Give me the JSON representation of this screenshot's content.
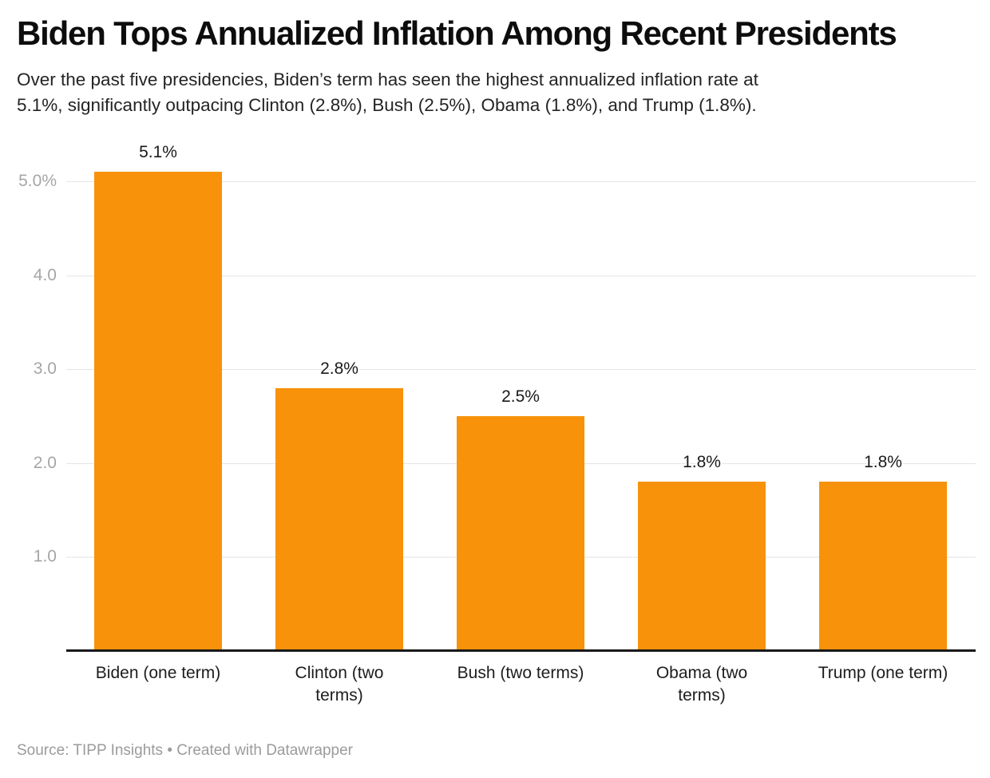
{
  "page": {
    "background": "#ffffff"
  },
  "header": {
    "title": "Biden Tops Annualized Inflation Among Recent Presidents",
    "subtitle": "Over the past five presidencies, Biden’s term has seen the highest annualized inflation rate at 5.1%, significantly outpacing Clinton (2.8%), Bush (2.5%), Obama (1.8%), and Trump (1.8%).",
    "subtitle_lines": [
      "Over the past five presidencies, Biden’s term has seen the highest annualized inflation rate at",
      "5.1%, significantly outpacing Clinton (2.8%), Bush (2.5%), Obama (1.8%), and Trump (1.8%)."
    ]
  },
  "footer": {
    "source": "Source: TIPP Insights • Created with Datawrapper"
  },
  "chart_data": {
    "type": "bar",
    "title": "Biden Tops Annualized Inflation Among Recent Presidents",
    "xlabel": "",
    "ylabel": "",
    "categories": [
      "Biden (one term)",
      "Clinton (two terms)",
      "Bush (two terms)",
      "Obama (two terms)",
      "Trump (one term)"
    ],
    "category_lines": [
      [
        "Biden (one term)"
      ],
      [
        "Clinton (two",
        "terms)"
      ],
      [
        "Bush (two terms)"
      ],
      [
        "Obama (two",
        "terms)"
      ],
      [
        "Trump (one term)"
      ]
    ],
    "values": [
      5.1,
      2.8,
      2.5,
      1.8,
      1.8
    ],
    "value_labels": [
      "5.1%",
      "2.8%",
      "2.5%",
      "1.8%",
      "1.8%"
    ],
    "ylim": [
      0,
      5.55
    ],
    "yticks": [
      {
        "value": 1.0,
        "label": "1.0"
      },
      {
        "value": 2.0,
        "label": "2.0"
      },
      {
        "value": 3.0,
        "label": "3.0"
      },
      {
        "value": 4.0,
        "label": "4.0"
      },
      {
        "value": 5.0,
        "label": "5.0%"
      }
    ],
    "grid": "horizontal",
    "legend": "none",
    "bar_color": "#f7920a",
    "colors": {
      "grid": "#e4e4e4",
      "axis": "#19191b",
      "tick_label": "#a6a6a6",
      "value_label": "#1a1a1a",
      "category_label": "#1d1d1d",
      "source_text": "#9b9b9b"
    }
  }
}
